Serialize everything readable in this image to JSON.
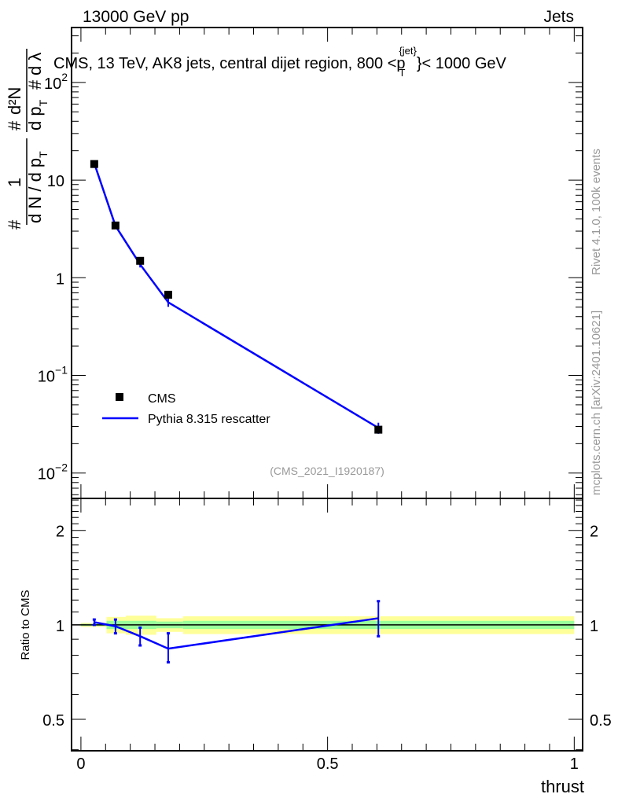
{
  "header": {
    "left": "13000 GeV pp",
    "right": "Jets"
  },
  "side_text": {
    "rivet": "Rivet 4.1.0,  100k events",
    "mcplots": "mcplots.cern.ch [arXiv:2401.10621]"
  },
  "analysis_id": "(CMS_2021_I1920187)",
  "ylabel_parts": {
    "hash": "#",
    "one": "1",
    "dn_dpt": "d N / d p",
    "sub_t": "T",
    "d2n": "d²N",
    "dpt": "d p",
    "dlambda": "d λ"
  },
  "chart_data": [
    {
      "type": "scatter",
      "panel": "main",
      "title": "CMS, 13 TeV, AK8 jets, central dijet region, 800 <p",
      "title_sup": "{jet}",
      "title_sub": "T",
      "title_tail": "}< 1000 GeV",
      "xlim": [
        -0.019,
        1.017
      ],
      "ylim": [
        0.0055,
        365
      ],
      "yscale": "log",
      "yticks": [
        {
          "v": 0.01,
          "base": "10",
          "exp": "−2"
        },
        {
          "v": 0.1,
          "base": "10",
          "exp": "−1"
        },
        {
          "v": 1,
          "base": "1",
          "exp": ""
        },
        {
          "v": 10,
          "base": "10",
          "exp": ""
        },
        {
          "v": 100,
          "base": "10",
          "exp": "2"
        }
      ],
      "legend": {
        "placement": "bottom-left",
        "entries": [
          "CMS",
          "Pythia 8.315 rescatter"
        ]
      },
      "series": [
        {
          "name": "CMS",
          "color": "#000000",
          "x": [
            0.027,
            0.07,
            0.12,
            0.177,
            0.603
          ],
          "y": [
            14.6,
            3.43,
            1.49,
            0.67,
            0.0278
          ]
        },
        {
          "name": "Pythia 8.315 rescatter",
          "color": "#0000ff",
          "x": [
            0.027,
            0.07,
            0.12,
            0.177,
            0.603
          ],
          "y": [
            14.9,
            3.4,
            1.37,
            0.56,
            0.029
          ],
          "yerr_rel": [
            0.02,
            0.05,
            0.07,
            0.1,
            0.13
          ]
        }
      ]
    },
    {
      "type": "line",
      "panel": "ratio",
      "ylabel": "Ratio to CMS",
      "xlabel": "thrust",
      "xlim": [
        -0.019,
        1.017
      ],
      "ylim": [
        0.397,
        2.53
      ],
      "yscale": "log",
      "xticks": [
        {
          "v": 0,
          "label": "0"
        },
        {
          "v": 0.5,
          "label": "0.5"
        },
        {
          "v": 1,
          "label": "1"
        }
      ],
      "yticks": [
        {
          "v": 0.5,
          "label": "0.5"
        },
        {
          "v": 1,
          "label": "1"
        },
        {
          "v": 2,
          "label": "2"
        }
      ],
      "bands": {
        "edges": [
          0,
          0.052,
          0.091,
          0.153,
          0.207,
          1.0
        ],
        "yellow": [
          0.015,
          0.06,
          0.07,
          0.05,
          0.065
        ],
        "green": [
          0.008,
          0.03,
          0.03,
          0.025,
          0.03
        ],
        "yellow_color": "#ffff99",
        "green_color": "#99ff99"
      },
      "series": [
        {
          "name": "Pythia 8.315 rescatter",
          "color": "#0000ff",
          "x": [
            0.027,
            0.07,
            0.12,
            0.177,
            0.603
          ],
          "y": [
            1.02,
            0.99,
            0.92,
            0.84,
            1.05
          ],
          "ylo": [
            1.0,
            0.94,
            0.86,
            0.76,
            0.92
          ],
          "yhi": [
            1.04,
            1.04,
            0.98,
            0.94,
            1.19
          ]
        }
      ]
    }
  ]
}
